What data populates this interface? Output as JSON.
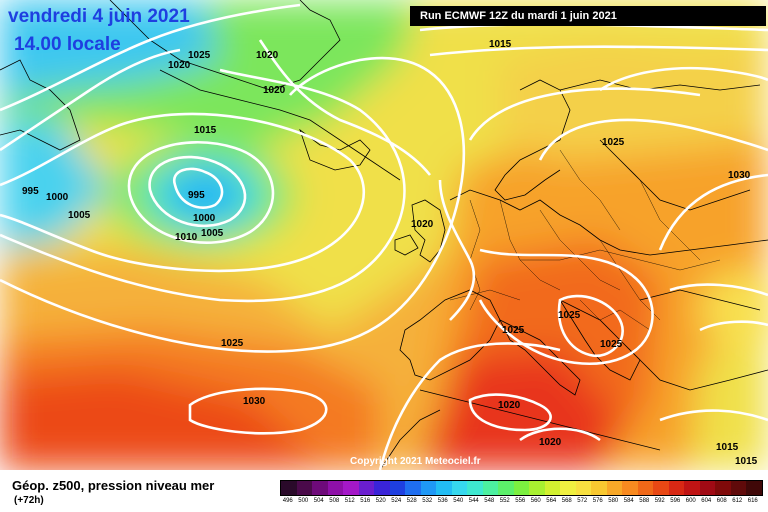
{
  "header": {
    "date": "vendredi 4 juin 2021",
    "time": "14.00 locale",
    "run": "Run ECMWF 12Z du mardi 1 juin 2021"
  },
  "isobar_labels": [
    {
      "id": "l1",
      "text": "1025"
    },
    {
      "id": "l2",
      "text": "1020"
    },
    {
      "id": "l3",
      "text": "1020"
    },
    {
      "id": "l4",
      "text": "1020"
    },
    {
      "id": "l5",
      "text": "1015"
    },
    {
      "id": "l6",
      "text": "1015"
    },
    {
      "id": "l7",
      "text": "995"
    },
    {
      "id": "l8",
      "text": "1000"
    },
    {
      "id": "l9",
      "text": "1005"
    },
    {
      "id": "l10",
      "text": "995"
    },
    {
      "id": "l11",
      "text": "1000"
    },
    {
      "id": "l12",
      "text": "1005"
    },
    {
      "id": "l13",
      "text": "1010"
    },
    {
      "id": "l14",
      "text": "1020"
    },
    {
      "id": "l15",
      "text": "1025"
    },
    {
      "id": "l16",
      "text": "1030"
    },
    {
      "id": "l17",
      "text": "1025"
    },
    {
      "id": "l18",
      "text": "1025"
    },
    {
      "id": "l19",
      "text": "1025"
    },
    {
      "id": "l20",
      "text": "1025"
    },
    {
      "id": "l21",
      "text": "1030"
    },
    {
      "id": "l22",
      "text": "1020"
    },
    {
      "id": "l23",
      "text": "1020"
    },
    {
      "id": "l24",
      "text": "1015"
    },
    {
      "id": "l25",
      "text": "1015"
    }
  ],
  "copyright": "Copyright 2021 Meteociel.fr",
  "legend": {
    "title": "Géop. z500, pression niveau mer",
    "subtitle": "(+72h)",
    "ticks": [
      "496",
      "500",
      "504",
      "508",
      "512",
      "516",
      "520",
      "524",
      "528",
      "532",
      "536",
      "540",
      "544",
      "548",
      "552",
      "556",
      "560",
      "564",
      "568",
      "572",
      "576",
      "580",
      "584",
      "588",
      "592",
      "596",
      "600",
      "604",
      "608",
      "612",
      "616"
    ],
    "colors": [
      "#2a0a2a",
      "#4a0a4a",
      "#6e0a7a",
      "#8e10a8",
      "#a418c8",
      "#6a1ecf",
      "#3a24d8",
      "#1e3fe0",
      "#1f6ef0",
      "#1f98f6",
      "#22bdf4",
      "#36d8ee",
      "#3ee8d0",
      "#4cf0a0",
      "#5cf06a",
      "#7cf040",
      "#a8f030",
      "#d2f030",
      "#f0f040",
      "#f8e040",
      "#f8c830",
      "#f8a828",
      "#f88a20",
      "#f06818",
      "#e84814",
      "#d82814",
      "#c01414",
      "#a00a14",
      "#800a0a",
      "#600a0a",
      "#400808"
    ]
  }
}
